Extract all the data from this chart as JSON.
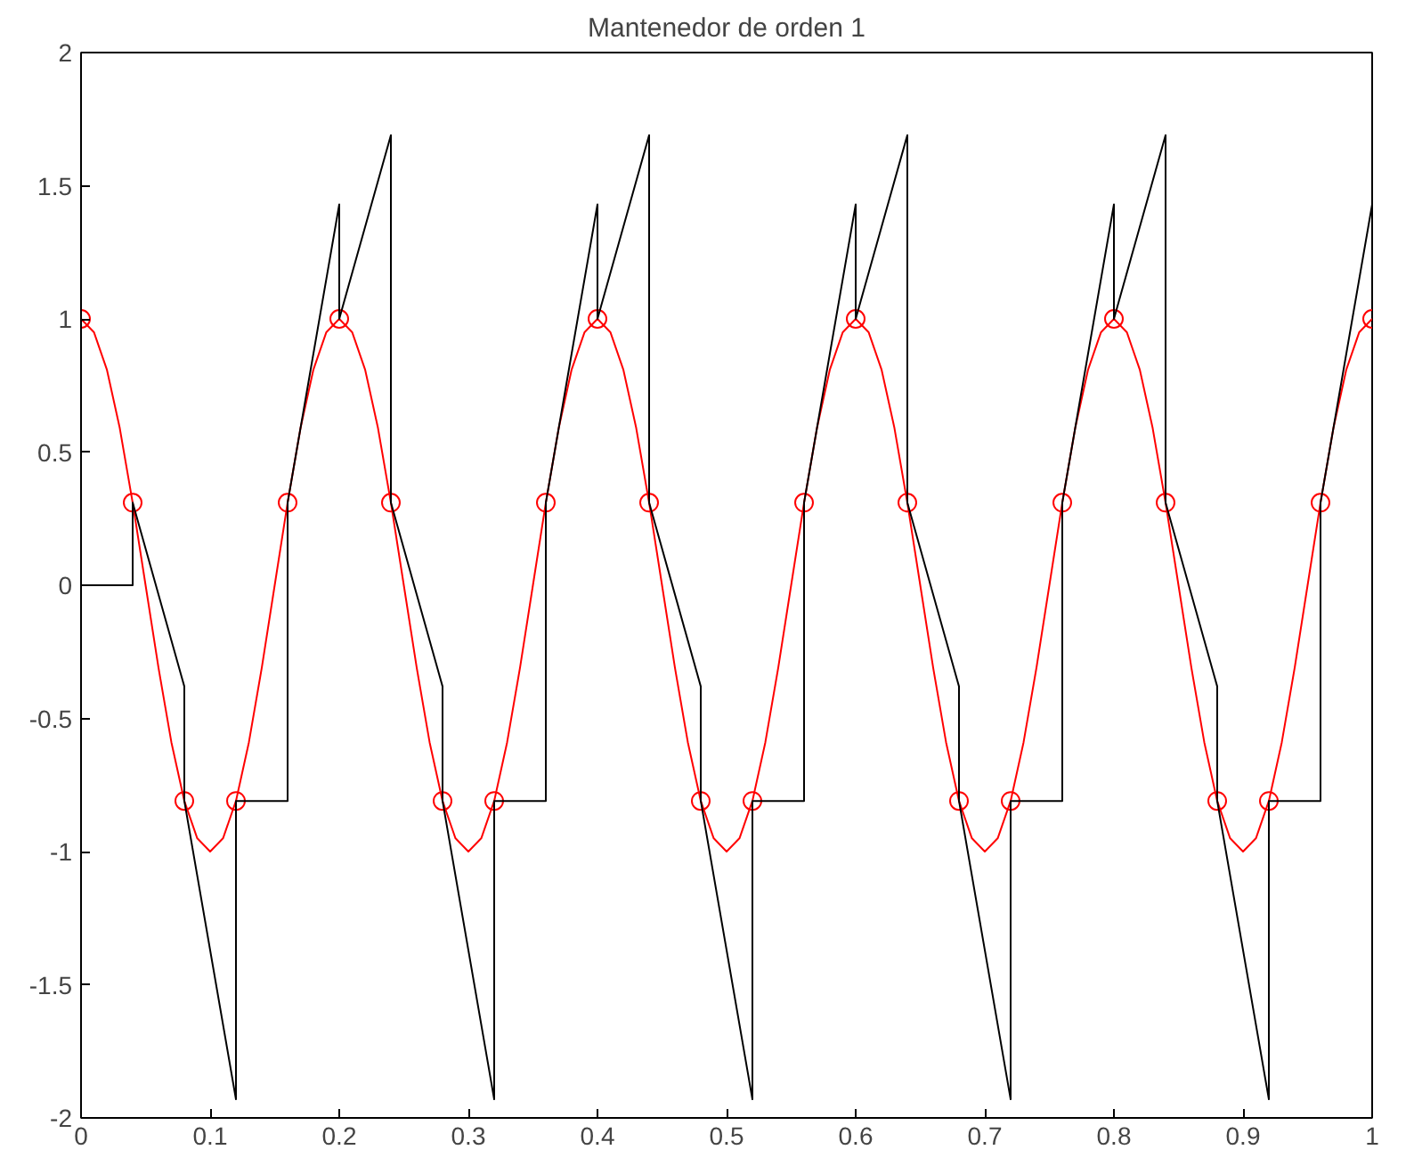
{
  "chart_data": {
    "type": "line",
    "title": "Mantenedor de orden 1",
    "xlim": [
      0,
      1
    ],
    "xticks": [
      0,
      0.1,
      0.2,
      0.3,
      0.4,
      0.5,
      0.6,
      0.7,
      0.8,
      0.9,
      1
    ],
    "ylim": [
      -2,
      2
    ],
    "yticks": [
      -2,
      -1.5,
      -1,
      -0.5,
      0,
      0.5,
      1,
      1.5,
      2
    ],
    "grid": false,
    "line_style": "solid",
    "series": [
      {
        "color": "#ff0000",
        "x": [
          0,
          0.01,
          0.02,
          0.03,
          0.04,
          0.05,
          0.06,
          0.07,
          0.08,
          0.09,
          0.1,
          0.11,
          0.12,
          0.13,
          0.14,
          0.15,
          0.16,
          0.17,
          0.18,
          0.19,
          0.2,
          0.21,
          0.22,
          0.23,
          0.24,
          0.25,
          0.26,
          0.27,
          0.28,
          0.29,
          0.3,
          0.31,
          0.32,
          0.33,
          0.34,
          0.35,
          0.36,
          0.37,
          0.38,
          0.39,
          0.4,
          0.41,
          0.42,
          0.43,
          0.44,
          0.45,
          0.46,
          0.47,
          0.48,
          0.49,
          0.5,
          0.51,
          0.52,
          0.53,
          0.54,
          0.55,
          0.56,
          0.57,
          0.58,
          0.59,
          0.6,
          0.61,
          0.62,
          0.63,
          0.64,
          0.65,
          0.66,
          0.67,
          0.68,
          0.69,
          0.7,
          0.71,
          0.72,
          0.73,
          0.74,
          0.75,
          0.76,
          0.77,
          0.78,
          0.79,
          0.8,
          0.81,
          0.82,
          0.83,
          0.84,
          0.85,
          0.86,
          0.87,
          0.88,
          0.89,
          0.9,
          0.91,
          0.92,
          0.93,
          0.94,
          0.95,
          0.96,
          0.97,
          0.98,
          0.99,
          1
        ],
        "values": [
          1,
          0.95,
          0.81,
          0.59,
          0.31,
          0,
          -0.31,
          -0.59,
          -0.81,
          -0.95,
          -1,
          -0.95,
          -0.81,
          -0.59,
          -0.31,
          0,
          0.31,
          0.59,
          0.81,
          0.95,
          1,
          0.95,
          0.81,
          0.59,
          0.31,
          0,
          -0.31,
          -0.59,
          -0.81,
          -0.95,
          -1,
          -0.95,
          -0.81,
          -0.59,
          -0.31,
          0,
          0.31,
          0.59,
          0.81,
          0.95,
          1,
          0.95,
          0.81,
          0.59,
          0.31,
          0,
          -0.31,
          -0.59,
          -0.81,
          -0.95,
          -1,
          -0.95,
          -0.81,
          -0.59,
          -0.31,
          0,
          0.31,
          0.59,
          0.81,
          0.95,
          1,
          0.95,
          0.81,
          0.59,
          0.31,
          0,
          -0.31,
          -0.59,
          -0.81,
          -0.95,
          -1,
          -0.95,
          -0.81,
          -0.59,
          -0.31,
          0,
          0.31,
          0.59,
          0.81,
          0.95,
          1,
          0.95,
          0.81,
          0.59,
          0.31,
          0,
          -0.31,
          -0.59,
          -0.81,
          -0.95,
          -1,
          -0.95,
          -0.81,
          -0.59,
          -0.31,
          0,
          0.31,
          0.59,
          0.81,
          0.95,
          1
        ]
      },
      {
        "type": "scatter",
        "marker": "circle",
        "color": "#ff0000",
        "x": [
          0,
          0.04,
          0.08,
          0.12,
          0.16,
          0.2,
          0.24,
          0.28,
          0.32,
          0.36,
          0.4,
          0.44,
          0.48,
          0.52,
          0.56,
          0.6,
          0.64,
          0.68,
          0.72,
          0.76,
          0.8,
          0.84,
          0.88,
          0.92,
          0.96,
          1
        ],
        "values": [
          1,
          0.31,
          -0.81,
          -0.81,
          0.31,
          1,
          0.31,
          -0.81,
          -0.81,
          0.31,
          1,
          0.31,
          -0.81,
          -0.81,
          0.31,
          1,
          0.31,
          -0.81,
          -0.81,
          0.31,
          1,
          0.31,
          -0.81,
          -0.81,
          0.31,
          1
        ]
      },
      {
        "color": "#000000",
        "x": [
          0,
          0.04,
          0.04,
          0.08,
          0.08,
          0.12,
          0.12,
          0.16,
          0.16,
          0.2,
          0.2,
          0.24,
          0.24,
          0.28,
          0.28,
          0.32,
          0.32,
          0.36,
          0.36,
          0.4,
          0.4,
          0.44,
          0.44,
          0.48,
          0.48,
          0.52,
          0.52,
          0.56,
          0.56,
          0.6,
          0.6,
          0.64,
          0.64,
          0.68,
          0.68,
          0.72,
          0.72,
          0.76,
          0.76,
          0.8,
          0.8,
          0.84,
          0.84,
          0.88,
          0.88,
          0.92,
          0.92,
          0.96,
          0.96,
          1
        ],
        "values": [
          0,
          0,
          0.31,
          -0.38,
          -0.81,
          -1.93,
          -0.81,
          -0.81,
          0.31,
          1.43,
          1,
          1.69,
          0.31,
          -0.38,
          -0.81,
          -1.93,
          -0.81,
          -0.81,
          0.31,
          1.43,
          1,
          1.69,
          0.31,
          -0.38,
          -0.81,
          -1.93,
          -0.81,
          -0.81,
          0.31,
          1.43,
          1,
          1.69,
          0.31,
          -0.38,
          -0.81,
          -1.93,
          -0.81,
          -0.81,
          0.31,
          1.43,
          1,
          1.69,
          0.31,
          -0.38,
          -0.81,
          -1.93,
          -0.81,
          -0.81,
          0.31,
          1.43
        ]
      }
    ]
  }
}
